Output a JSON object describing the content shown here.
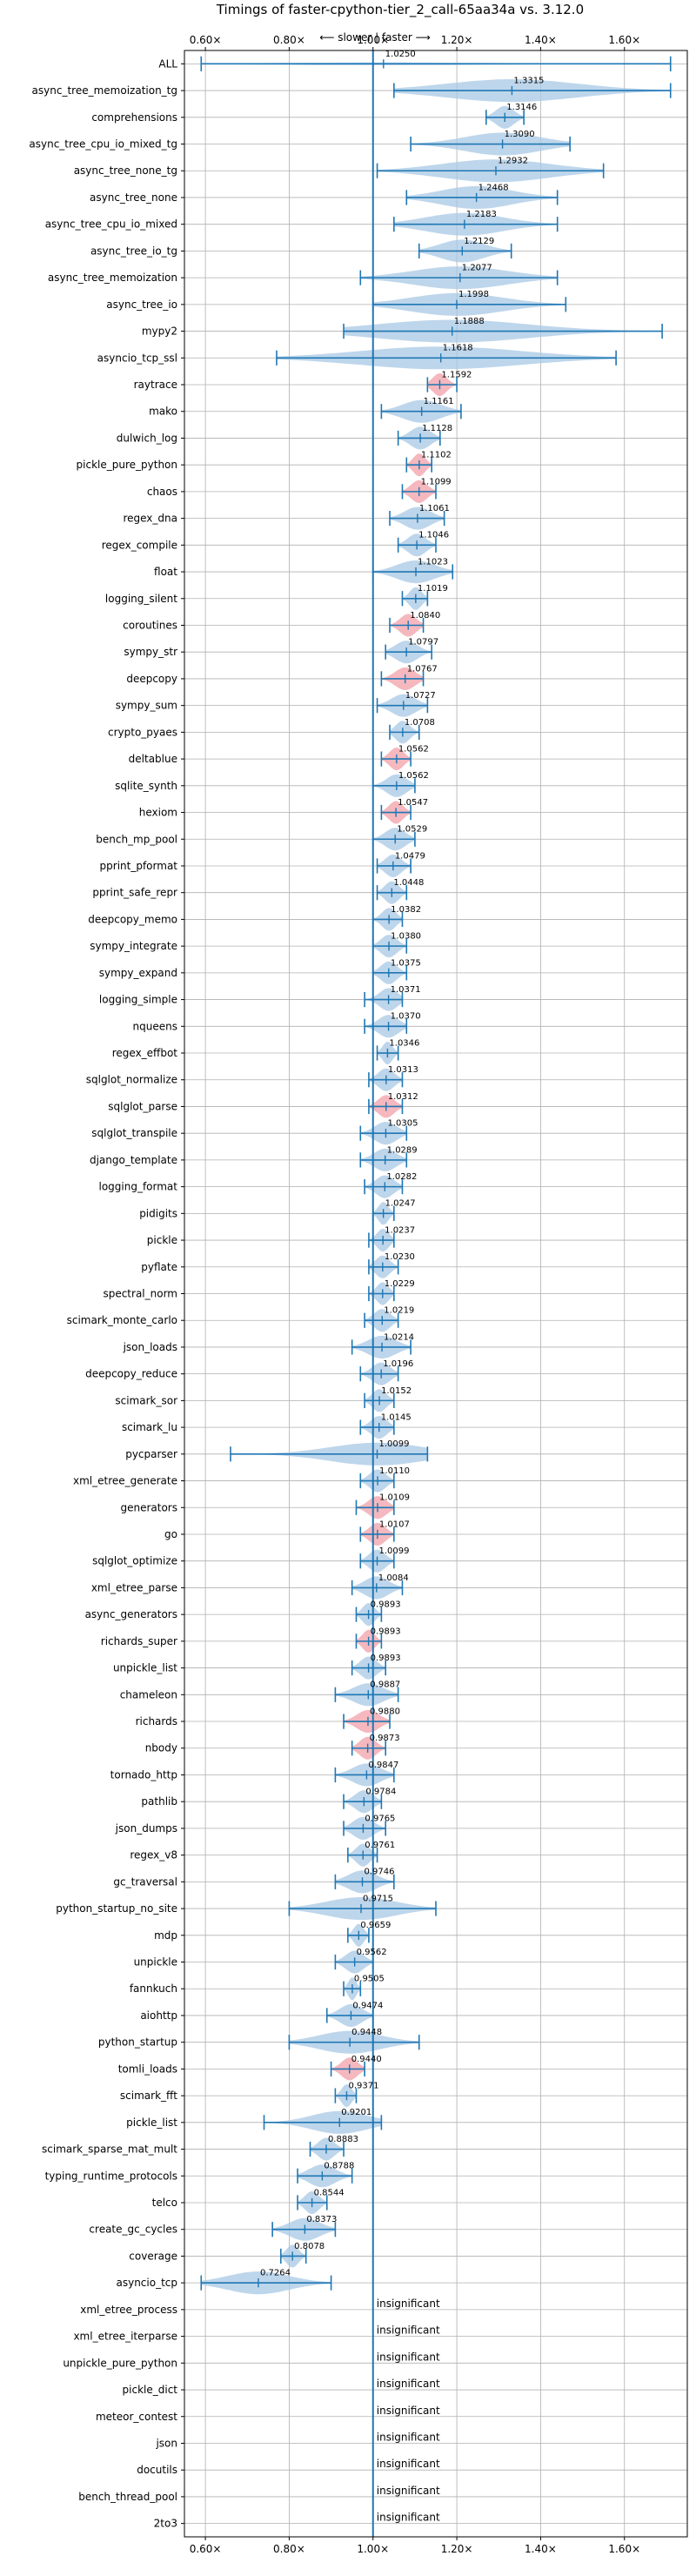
{
  "chart_data": {
    "type": "violin",
    "title": "Timings of faster-cpython-tier_2_call-65aa34a vs. 3.12.0",
    "direction_label": "⟵ slower | faster ⟶",
    "xlim": [
      0.55,
      1.75
    ],
    "x_ticks": [
      0.6,
      0.8,
      1.0,
      1.2,
      1.4,
      1.6
    ],
    "x_tick_labels": [
      "0.60×",
      "0.80×",
      "1.00×",
      "1.20×",
      "1.40×",
      "1.60×"
    ],
    "reference_x": 1.0,
    "grid": true,
    "colors": {
      "violin": "#a8c8e4",
      "violin_highlight": "#f2a0a8",
      "whisker": "#1f77b4",
      "reference_line": "#1f77b4",
      "grid": "#b0b0b0"
    },
    "insignificant_label": "insignificant",
    "benchmarks": [
      {
        "name": "ALL",
        "value": 1.025,
        "label": "1.0250",
        "min": 0.59,
        "max": 1.71,
        "width": 0.1
      },
      {
        "name": "async_tree_memoization_tg",
        "value": 1.3315,
        "label": "1.3315",
        "min": 1.05,
        "max": 1.71,
        "width": 0.85
      },
      {
        "name": "comprehensions",
        "value": 1.3146,
        "label": "1.3146",
        "min": 1.27,
        "max": 1.36,
        "width": 0.85
      },
      {
        "name": "async_tree_cpu_io_mixed_tg",
        "value": 1.309,
        "label": "1.3090",
        "min": 1.09,
        "max": 1.47,
        "width": 0.85
      },
      {
        "name": "async_tree_none_tg",
        "value": 1.2932,
        "label": "1.2932",
        "min": 1.01,
        "max": 1.55,
        "width": 0.85
      },
      {
        "name": "async_tree_none",
        "value": 1.2468,
        "label": "1.2468",
        "min": 1.08,
        "max": 1.44,
        "width": 0.85
      },
      {
        "name": "async_tree_cpu_io_mixed",
        "value": 1.2183,
        "label": "1.2183",
        "min": 1.05,
        "max": 1.44,
        "width": 0.85
      },
      {
        "name": "async_tree_io_tg",
        "value": 1.2129,
        "label": "1.2129",
        "min": 1.11,
        "max": 1.33,
        "width": 0.85
      },
      {
        "name": "async_tree_memoization",
        "value": 1.2077,
        "label": "1.2077",
        "min": 0.97,
        "max": 1.44,
        "width": 0.85
      },
      {
        "name": "async_tree_io",
        "value": 1.1998,
        "label": "1.1998",
        "min": 1.0,
        "max": 1.46,
        "width": 0.85
      },
      {
        "name": "mypy2",
        "value": 1.1888,
        "label": "1.1888",
        "min": 0.93,
        "max": 1.69,
        "width": 0.85
      },
      {
        "name": "asyncio_tcp_ssl",
        "value": 1.1618,
        "label": "1.1618",
        "min": 0.77,
        "max": 1.58,
        "width": 0.85
      },
      {
        "name": "raytrace",
        "value": 1.1592,
        "label": "1.1592",
        "min": 1.13,
        "max": 1.2,
        "width": 0.85,
        "highlight": true
      },
      {
        "name": "mako",
        "value": 1.1161,
        "label": "1.1161",
        "min": 1.02,
        "max": 1.21,
        "width": 0.85
      },
      {
        "name": "dulwich_log",
        "value": 1.1128,
        "label": "1.1128",
        "min": 1.06,
        "max": 1.16,
        "width": 0.85
      },
      {
        "name": "pickle_pure_python",
        "value": 1.1102,
        "label": "1.1102",
        "min": 1.08,
        "max": 1.14,
        "width": 0.85,
        "highlight": true
      },
      {
        "name": "chaos",
        "value": 1.1099,
        "label": "1.1099",
        "min": 1.07,
        "max": 1.15,
        "width": 0.85,
        "highlight": true
      },
      {
        "name": "regex_dna",
        "value": 1.1061,
        "label": "1.1061",
        "min": 1.04,
        "max": 1.17,
        "width": 0.85
      },
      {
        "name": "regex_compile",
        "value": 1.1046,
        "label": "1.1046",
        "min": 1.06,
        "max": 1.15,
        "width": 0.85
      },
      {
        "name": "float",
        "value": 1.1023,
        "label": "1.1023",
        "min": 1.0,
        "max": 1.19,
        "width": 0.85
      },
      {
        "name": "logging_silent",
        "value": 1.1019,
        "label": "1.1019",
        "min": 1.07,
        "max": 1.13,
        "width": 0.85
      },
      {
        "name": "coroutines",
        "value": 1.084,
        "label": "1.0840",
        "min": 1.04,
        "max": 1.12,
        "width": 0.85,
        "highlight": true
      },
      {
        "name": "sympy_str",
        "value": 1.0797,
        "label": "1.0797",
        "min": 1.03,
        "max": 1.14,
        "width": 0.85
      },
      {
        "name": "deepcopy",
        "value": 1.0767,
        "label": "1.0767",
        "min": 1.02,
        "max": 1.12,
        "width": 0.85,
        "highlight": true
      },
      {
        "name": "sympy_sum",
        "value": 1.0727,
        "label": "1.0727",
        "min": 1.01,
        "max": 1.13,
        "width": 0.85
      },
      {
        "name": "crypto_pyaes",
        "value": 1.0708,
        "label": "1.0708",
        "min": 1.04,
        "max": 1.11,
        "width": 0.85
      },
      {
        "name": "deltablue",
        "value": 1.0562,
        "label": "1.0562",
        "min": 1.02,
        "max": 1.09,
        "width": 0.85,
        "highlight": true
      },
      {
        "name": "sqlite_synth",
        "value": 1.0562,
        "label": "1.0562",
        "min": 1.0,
        "max": 1.1,
        "width": 0.85
      },
      {
        "name": "hexiom",
        "value": 1.0547,
        "label": "1.0547",
        "min": 1.02,
        "max": 1.09,
        "width": 0.85,
        "highlight": true
      },
      {
        "name": "bench_mp_pool",
        "value": 1.0529,
        "label": "1.0529",
        "min": 1.0,
        "max": 1.1,
        "width": 0.85
      },
      {
        "name": "pprint_pformat",
        "value": 1.0479,
        "label": "1.0479",
        "min": 1.01,
        "max": 1.09,
        "width": 0.85
      },
      {
        "name": "pprint_safe_repr",
        "value": 1.0448,
        "label": "1.0448",
        "min": 1.01,
        "max": 1.08,
        "width": 0.85
      },
      {
        "name": "deepcopy_memo",
        "value": 1.0382,
        "label": "1.0382",
        "min": 1.0,
        "max": 1.07,
        "width": 0.85
      },
      {
        "name": "sympy_integrate",
        "value": 1.038,
        "label": "1.0380",
        "min": 1.0,
        "max": 1.08,
        "width": 0.85
      },
      {
        "name": "sympy_expand",
        "value": 1.0375,
        "label": "1.0375",
        "min": 1.0,
        "max": 1.08,
        "width": 0.85
      },
      {
        "name": "logging_simple",
        "value": 1.0371,
        "label": "1.0371",
        "min": 0.98,
        "max": 1.07,
        "width": 0.85
      },
      {
        "name": "nqueens",
        "value": 1.037,
        "label": "1.0370",
        "min": 0.98,
        "max": 1.08,
        "width": 0.85
      },
      {
        "name": "regex_effbot",
        "value": 1.0346,
        "label": "1.0346",
        "min": 1.01,
        "max": 1.06,
        "width": 0.85
      },
      {
        "name": "sqlglot_normalize",
        "value": 1.0313,
        "label": "1.0313",
        "min": 0.99,
        "max": 1.07,
        "width": 0.85
      },
      {
        "name": "sqlglot_parse",
        "value": 1.0312,
        "label": "1.0312",
        "min": 0.99,
        "max": 1.07,
        "width": 0.85,
        "highlight": true
      },
      {
        "name": "sqlglot_transpile",
        "value": 1.0305,
        "label": "1.0305",
        "min": 0.97,
        "max": 1.08,
        "width": 0.85
      },
      {
        "name": "django_template",
        "value": 1.0289,
        "label": "1.0289",
        "min": 0.97,
        "max": 1.08,
        "width": 0.85
      },
      {
        "name": "logging_format",
        "value": 1.0282,
        "label": "1.0282",
        "min": 0.98,
        "max": 1.07,
        "width": 0.85
      },
      {
        "name": "pidigits",
        "value": 1.0247,
        "label": "1.0247",
        "min": 1.0,
        "max": 1.05,
        "width": 0.85
      },
      {
        "name": "pickle",
        "value": 1.0237,
        "label": "1.0237",
        "min": 0.99,
        "max": 1.05,
        "width": 0.85
      },
      {
        "name": "pyflate",
        "value": 1.023,
        "label": "1.0230",
        "min": 0.99,
        "max": 1.06,
        "width": 0.85
      },
      {
        "name": "spectral_norm",
        "value": 1.0229,
        "label": "1.0229",
        "min": 0.99,
        "max": 1.05,
        "width": 0.85
      },
      {
        "name": "scimark_monte_carlo",
        "value": 1.0219,
        "label": "1.0219",
        "min": 0.98,
        "max": 1.06,
        "width": 0.85
      },
      {
        "name": "json_loads",
        "value": 1.0214,
        "label": "1.0214",
        "min": 0.95,
        "max": 1.09,
        "width": 0.85
      },
      {
        "name": "deepcopy_reduce",
        "value": 1.0196,
        "label": "1.0196",
        "min": 0.97,
        "max": 1.06,
        "width": 0.85
      },
      {
        "name": "scimark_sor",
        "value": 1.0152,
        "label": "1.0152",
        "min": 0.98,
        "max": 1.05,
        "width": 0.85
      },
      {
        "name": "scimark_lu",
        "value": 1.0145,
        "label": "1.0145",
        "min": 0.97,
        "max": 1.05,
        "width": 0.85
      },
      {
        "name": "pycparser",
        "value": 1.0099,
        "label": "1.0099",
        "min": 0.66,
        "max": 1.13,
        "width": 0.85
      },
      {
        "name": "xml_etree_generate",
        "value": 1.011,
        "label": "1.0110",
        "min": 0.97,
        "max": 1.05,
        "width": 0.85
      },
      {
        "name": "generators",
        "value": 1.0109,
        "label": "1.0109",
        "min": 0.96,
        "max": 1.05,
        "width": 0.85,
        "highlight": true
      },
      {
        "name": "go",
        "value": 1.0107,
        "label": "1.0107",
        "min": 0.97,
        "max": 1.05,
        "width": 0.85,
        "highlight": true
      },
      {
        "name": "sqlglot_optimize",
        "value": 1.0099,
        "label": "1.0099",
        "min": 0.97,
        "max": 1.05,
        "width": 0.85
      },
      {
        "name": "xml_etree_parse",
        "value": 1.0084,
        "label": "1.0084",
        "min": 0.95,
        "max": 1.07,
        "width": 0.85
      },
      {
        "name": "async_generators",
        "value": 0.9893,
        "label": "0.9893",
        "min": 0.96,
        "max": 1.02,
        "width": 0.85
      },
      {
        "name": "richards_super",
        "value": 0.9893,
        "label": "0.9893",
        "min": 0.96,
        "max": 1.02,
        "width": 0.85,
        "highlight": true
      },
      {
        "name": "unpickle_list",
        "value": 0.9893,
        "label": "0.9893",
        "min": 0.95,
        "max": 1.03,
        "width": 0.85
      },
      {
        "name": "chameleon",
        "value": 0.9887,
        "label": "0.9887",
        "min": 0.91,
        "max": 1.06,
        "width": 0.85
      },
      {
        "name": "richards",
        "value": 0.988,
        "label": "0.9880",
        "min": 0.93,
        "max": 1.04,
        "width": 0.85,
        "highlight": true
      },
      {
        "name": "nbody",
        "value": 0.9873,
        "label": "0.9873",
        "min": 0.95,
        "max": 1.03,
        "width": 0.85,
        "highlight": true
      },
      {
        "name": "tornado_http",
        "value": 0.9847,
        "label": "0.9847",
        "min": 0.91,
        "max": 1.05,
        "width": 0.85
      },
      {
        "name": "pathlib",
        "value": 0.9784,
        "label": "0.9784",
        "min": 0.93,
        "max": 1.02,
        "width": 0.85
      },
      {
        "name": "json_dumps",
        "value": 0.9765,
        "label": "0.9765",
        "min": 0.93,
        "max": 1.03,
        "width": 0.85
      },
      {
        "name": "regex_v8",
        "value": 0.9761,
        "label": "0.9761",
        "min": 0.94,
        "max": 1.01,
        "width": 0.85
      },
      {
        "name": "gc_traversal",
        "value": 0.9746,
        "label": "0.9746",
        "min": 0.91,
        "max": 1.05,
        "width": 0.85
      },
      {
        "name": "python_startup_no_site",
        "value": 0.9715,
        "label": "0.9715",
        "min": 0.8,
        "max": 1.15,
        "width": 0.85
      },
      {
        "name": "mdp",
        "value": 0.9659,
        "label": "0.9659",
        "min": 0.94,
        "max": 0.99,
        "width": 0.85
      },
      {
        "name": "unpickle",
        "value": 0.9562,
        "label": "0.9562",
        "min": 0.91,
        "max": 1.0,
        "width": 0.85
      },
      {
        "name": "fannkuch",
        "value": 0.9505,
        "label": "0.9505",
        "min": 0.93,
        "max": 0.97,
        "width": 0.85
      },
      {
        "name": "aiohttp",
        "value": 0.9474,
        "label": "0.9474",
        "min": 0.89,
        "max": 1.0,
        "width": 0.85
      },
      {
        "name": "python_startup",
        "value": 0.9448,
        "label": "0.9448",
        "min": 0.8,
        "max": 1.11,
        "width": 0.85
      },
      {
        "name": "tomli_loads",
        "value": 0.944,
        "label": "0.9440",
        "min": 0.9,
        "max": 0.98,
        "width": 0.85,
        "highlight": true
      },
      {
        "name": "scimark_fft",
        "value": 0.9371,
        "label": "0.9371",
        "min": 0.91,
        "max": 0.96,
        "width": 0.85
      },
      {
        "name": "pickle_list",
        "value": 0.9201,
        "label": "0.9201",
        "min": 0.74,
        "max": 1.02,
        "width": 0.85
      },
      {
        "name": "scimark_sparse_mat_mult",
        "value": 0.8883,
        "label": "0.8883",
        "min": 0.85,
        "max": 0.93,
        "width": 0.85
      },
      {
        "name": "typing_runtime_protocols",
        "value": 0.8788,
        "label": "0.8788",
        "min": 0.82,
        "max": 0.95,
        "width": 0.85
      },
      {
        "name": "telco",
        "value": 0.8544,
        "label": "0.8544",
        "min": 0.82,
        "max": 0.89,
        "width": 0.85
      },
      {
        "name": "create_gc_cycles",
        "value": 0.8373,
        "label": "0.8373",
        "min": 0.76,
        "max": 0.91,
        "width": 0.85
      },
      {
        "name": "coverage",
        "value": 0.8078,
        "label": "0.8078",
        "min": 0.78,
        "max": 0.84,
        "width": 0.85
      },
      {
        "name": "asyncio_tcp",
        "value": 0.7264,
        "label": "0.7264",
        "min": 0.59,
        "max": 0.9,
        "width": 0.85
      },
      {
        "name": "xml_etree_process",
        "insignificant": true
      },
      {
        "name": "xml_etree_iterparse",
        "insignificant": true
      },
      {
        "name": "unpickle_pure_python",
        "insignificant": true
      },
      {
        "name": "pickle_dict",
        "insignificant": true
      },
      {
        "name": "meteor_contest",
        "insignificant": true
      },
      {
        "name": "json",
        "insignificant": true
      },
      {
        "name": "docutils",
        "insignificant": true
      },
      {
        "name": "bench_thread_pool",
        "insignificant": true
      },
      {
        "name": "2to3",
        "insignificant": true
      }
    ]
  }
}
